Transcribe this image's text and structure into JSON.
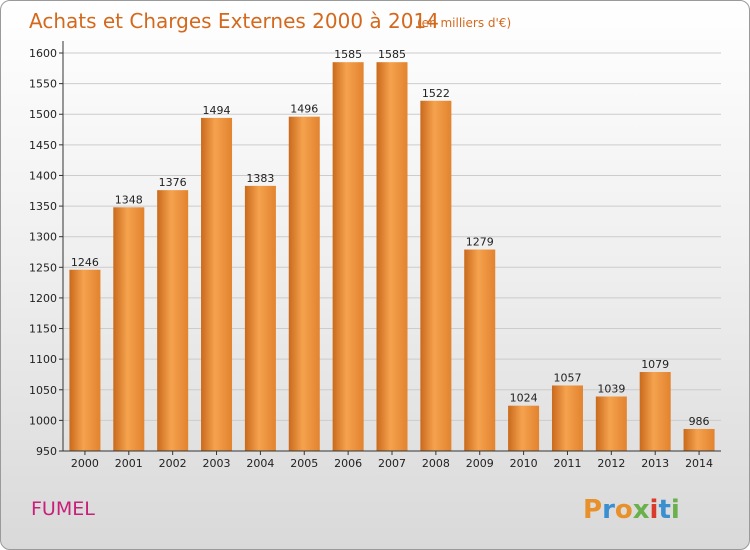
{
  "chart_data": {
    "type": "bar",
    "title": "Achats et Charges Externes 2000 à 2014",
    "subtitle": "(en milliers d'€)",
    "categories": [
      "2000",
      "2001",
      "2002",
      "2003",
      "2004",
      "2005",
      "2006",
      "2007",
      "2008",
      "2009",
      "2010",
      "2011",
      "2012",
      "2013",
      "2014"
    ],
    "values": [
      1246,
      1348,
      1376,
      1494,
      1383,
      1496,
      1585,
      1585,
      1522,
      1279,
      1024,
      1057,
      1039,
      1079,
      986
    ],
    "ylim": [
      950,
      1600
    ],
    "yticks": [
      950,
      1000,
      1050,
      1100,
      1150,
      1200,
      1250,
      1300,
      1350,
      1400,
      1450,
      1500,
      1550,
      1600
    ],
    "grid": true,
    "bar_color": "#e8842e"
  },
  "footer": {
    "town": "FUMEL",
    "logo_letters": [
      "P",
      "r",
      "o",
      "x",
      "i",
      "t",
      "i"
    ],
    "logo_colors": [
      "#e8902a",
      "#3a8fd0",
      "#e8902a",
      "#6ab04c",
      "#d93a2b",
      "#3a8fd0",
      "#6ab04c"
    ]
  }
}
